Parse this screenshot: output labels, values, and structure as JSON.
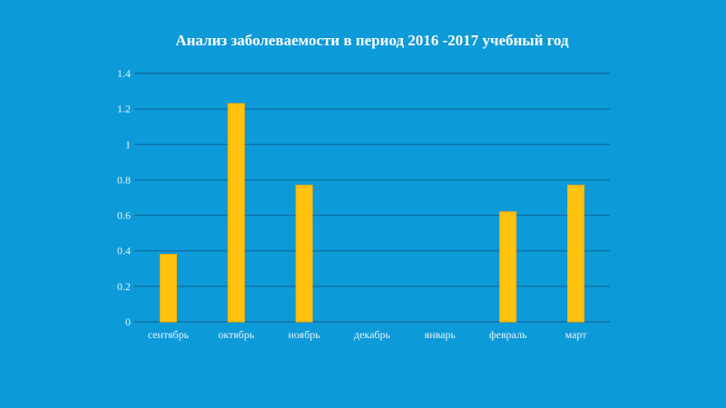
{
  "chart_data": {
    "type": "bar",
    "title": "Анализ заболеваемости в период 2016 -2017 учебный год",
    "xlabel": "",
    "ylabel": "",
    "categories": [
      "сентябрь",
      "октябрь",
      "ноябрь",
      "декабрь",
      "январь",
      "февраль",
      "март"
    ],
    "values": [
      0.38,
      1.23,
      0.77,
      0,
      0,
      0.62,
      0.77
    ],
    "ylim": [
      0,
      1.4
    ],
    "yticks": [
      0,
      0.2,
      0.4,
      0.6,
      0.8,
      1,
      1.2,
      1.4
    ],
    "ytick_labels": [
      "0",
      "0.2",
      "0.4",
      "0.6",
      "0.8",
      "1",
      "1.2",
      "1.4"
    ],
    "grid": true,
    "legend": "none",
    "colors": {
      "background": "#0d9ad8",
      "bar": "#ffc20e",
      "grid": "#0b6fa4",
      "text": "#ffffff"
    }
  }
}
